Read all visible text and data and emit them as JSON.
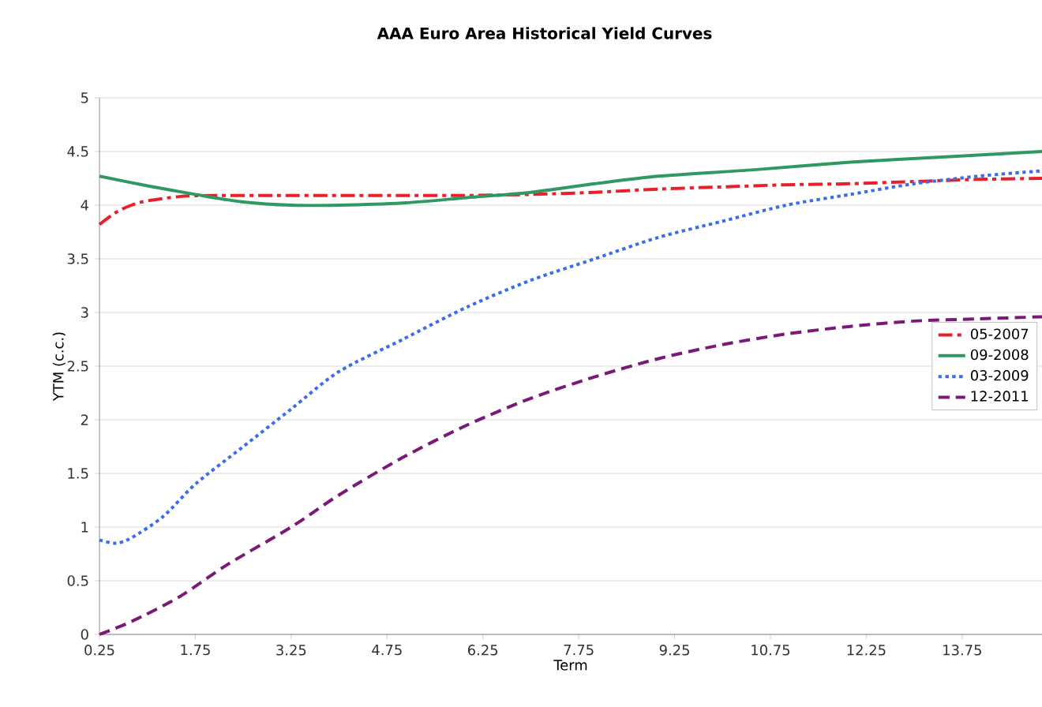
{
  "chart_data": {
    "type": "line",
    "title": "AAA Euro Area Historical Yield Curves",
    "xlabel": "Term",
    "ylabel": "YTM (c.c.)",
    "xlim": [
      0.25,
      15
    ],
    "xticks": [
      0.25,
      1.75,
      3.25,
      4.75,
      6.25,
      7.75,
      9.25,
      10.75,
      12.25,
      13.75
    ],
    "ylim": [
      0,
      5
    ],
    "yticks": [
      0,
      0.5,
      1,
      1.5,
      2,
      2.5,
      3,
      3.5,
      4,
      4.5,
      5
    ],
    "grid": "y",
    "legend": "right",
    "marker": "none",
    "series": [
      {
        "name": "05-2007",
        "color": "#e8202a",
        "line_style": "dashdot",
        "x": [
          0.25,
          0.5,
          0.75,
          1,
          1.5,
          2,
          3,
          4,
          5,
          6,
          7,
          8,
          9,
          10,
          11,
          12,
          13,
          14,
          15
        ],
        "values": [
          3.82,
          3.93,
          4.0,
          4.04,
          4.08,
          4.09,
          4.09,
          4.09,
          4.09,
          4.09,
          4.1,
          4.12,
          4.15,
          4.17,
          4.19,
          4.2,
          4.22,
          4.24,
          4.25
        ]
      },
      {
        "name": "09-2008",
        "color": "#2e9960",
        "line_style": "solid",
        "x": [
          0.25,
          1,
          1.75,
          2.5,
          3.25,
          4,
          5,
          6,
          7,
          8,
          9,
          10.5,
          12,
          13.5,
          15
        ],
        "values": [
          4.27,
          4.18,
          4.1,
          4.03,
          4.0,
          4.0,
          4.02,
          4.07,
          4.12,
          4.2,
          4.27,
          4.33,
          4.4,
          4.45,
          4.5
        ]
      },
      {
        "name": "03-2009",
        "color": "#3a6ee8",
        "line_style": "dotted",
        "x": [
          0.25,
          0.5,
          0.75,
          1.25,
          1.75,
          2.5,
          3.25,
          4,
          5,
          6,
          7,
          8,
          9,
          10,
          11,
          12,
          13,
          14,
          15
        ],
        "values": [
          0.88,
          0.85,
          0.9,
          1.1,
          1.4,
          1.75,
          2.1,
          2.45,
          2.75,
          3.05,
          3.3,
          3.5,
          3.7,
          3.85,
          4.0,
          4.1,
          4.2,
          4.27,
          4.32
        ]
      },
      {
        "name": "12-2011",
        "color": "#7a1a78",
        "line_style": "dashed",
        "x": [
          0.25,
          0.75,
          1.5,
          2.25,
          3.25,
          4,
          5,
          6,
          7,
          8,
          9,
          10,
          11,
          12,
          13,
          14,
          15
        ],
        "values": [
          0.0,
          0.12,
          0.35,
          0.65,
          1.0,
          1.3,
          1.65,
          1.95,
          2.2,
          2.4,
          2.57,
          2.7,
          2.8,
          2.87,
          2.92,
          2.94,
          2.96
        ]
      }
    ]
  }
}
